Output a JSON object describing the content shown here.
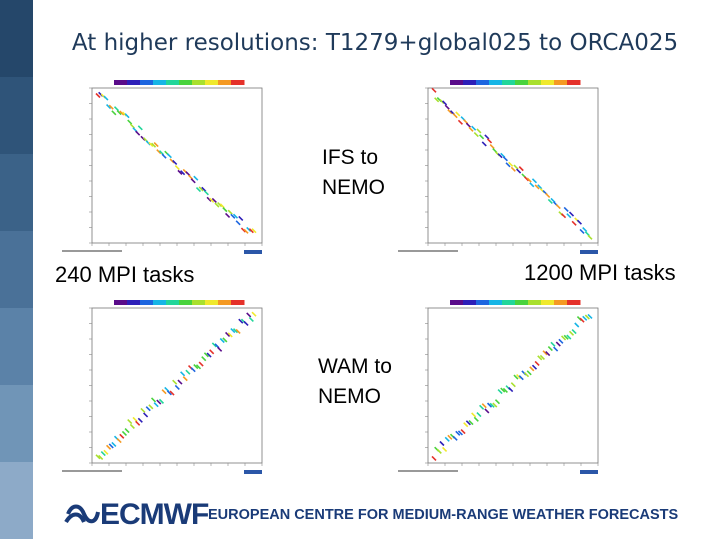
{
  "slide": {
    "title": "At higher resolutions: T1279+global025 to ORCA025",
    "labels": {
      "ifs_to_nemo": [
        "IFS to",
        "NEMO"
      ],
      "wam_to_nemo": [
        "WAM to",
        "NEMO"
      ],
      "left_tasks": "240 MPI tasks",
      "right_tasks": "1200 MPI tasks"
    },
    "footer": {
      "logo": "ECMWF",
      "organization": "EUROPEAN CENTRE FOR MEDIUM-RANGE WEATHER FORECASTS"
    }
  },
  "colors": {
    "sidebar": [
      "#25476a",
      "#2f5479",
      "#3b6288",
      "#4a7198",
      "#5b82a8",
      "#7095b7",
      "#8daac8"
    ],
    "brand": "#1a3b78",
    "colorbar": [
      "#5a0c8a",
      "#2d1fb8",
      "#1d66e0",
      "#16b5e6",
      "#22d69a",
      "#49d33d",
      "#a9e02e",
      "#f0e92c",
      "#f59a23",
      "#e5312a"
    ]
  },
  "icons": [
    "ecmwf-logo-icon"
  ]
}
